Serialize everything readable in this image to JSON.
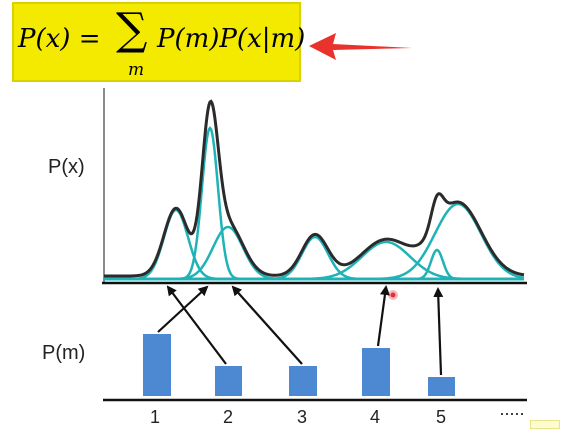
{
  "formula": {
    "lhs": "P(x) =",
    "sum_symbol": "∑",
    "sum_index": "m",
    "rhs": "P(m)P(x|m)"
  },
  "labels": {
    "px": "P(x)",
    "pm": "P(m)"
  },
  "components": [
    "1",
    "2",
    "3",
    "4",
    "5"
  ],
  "ellipsis": "·····",
  "colors": {
    "highlight": "#f4ea00",
    "arrow_red": "#e8322b",
    "mixture_curve": "#2b2b2b",
    "component_curves": "#1fb3b8",
    "bars": "#4d88d3",
    "marker": "#e0303a"
  }
}
